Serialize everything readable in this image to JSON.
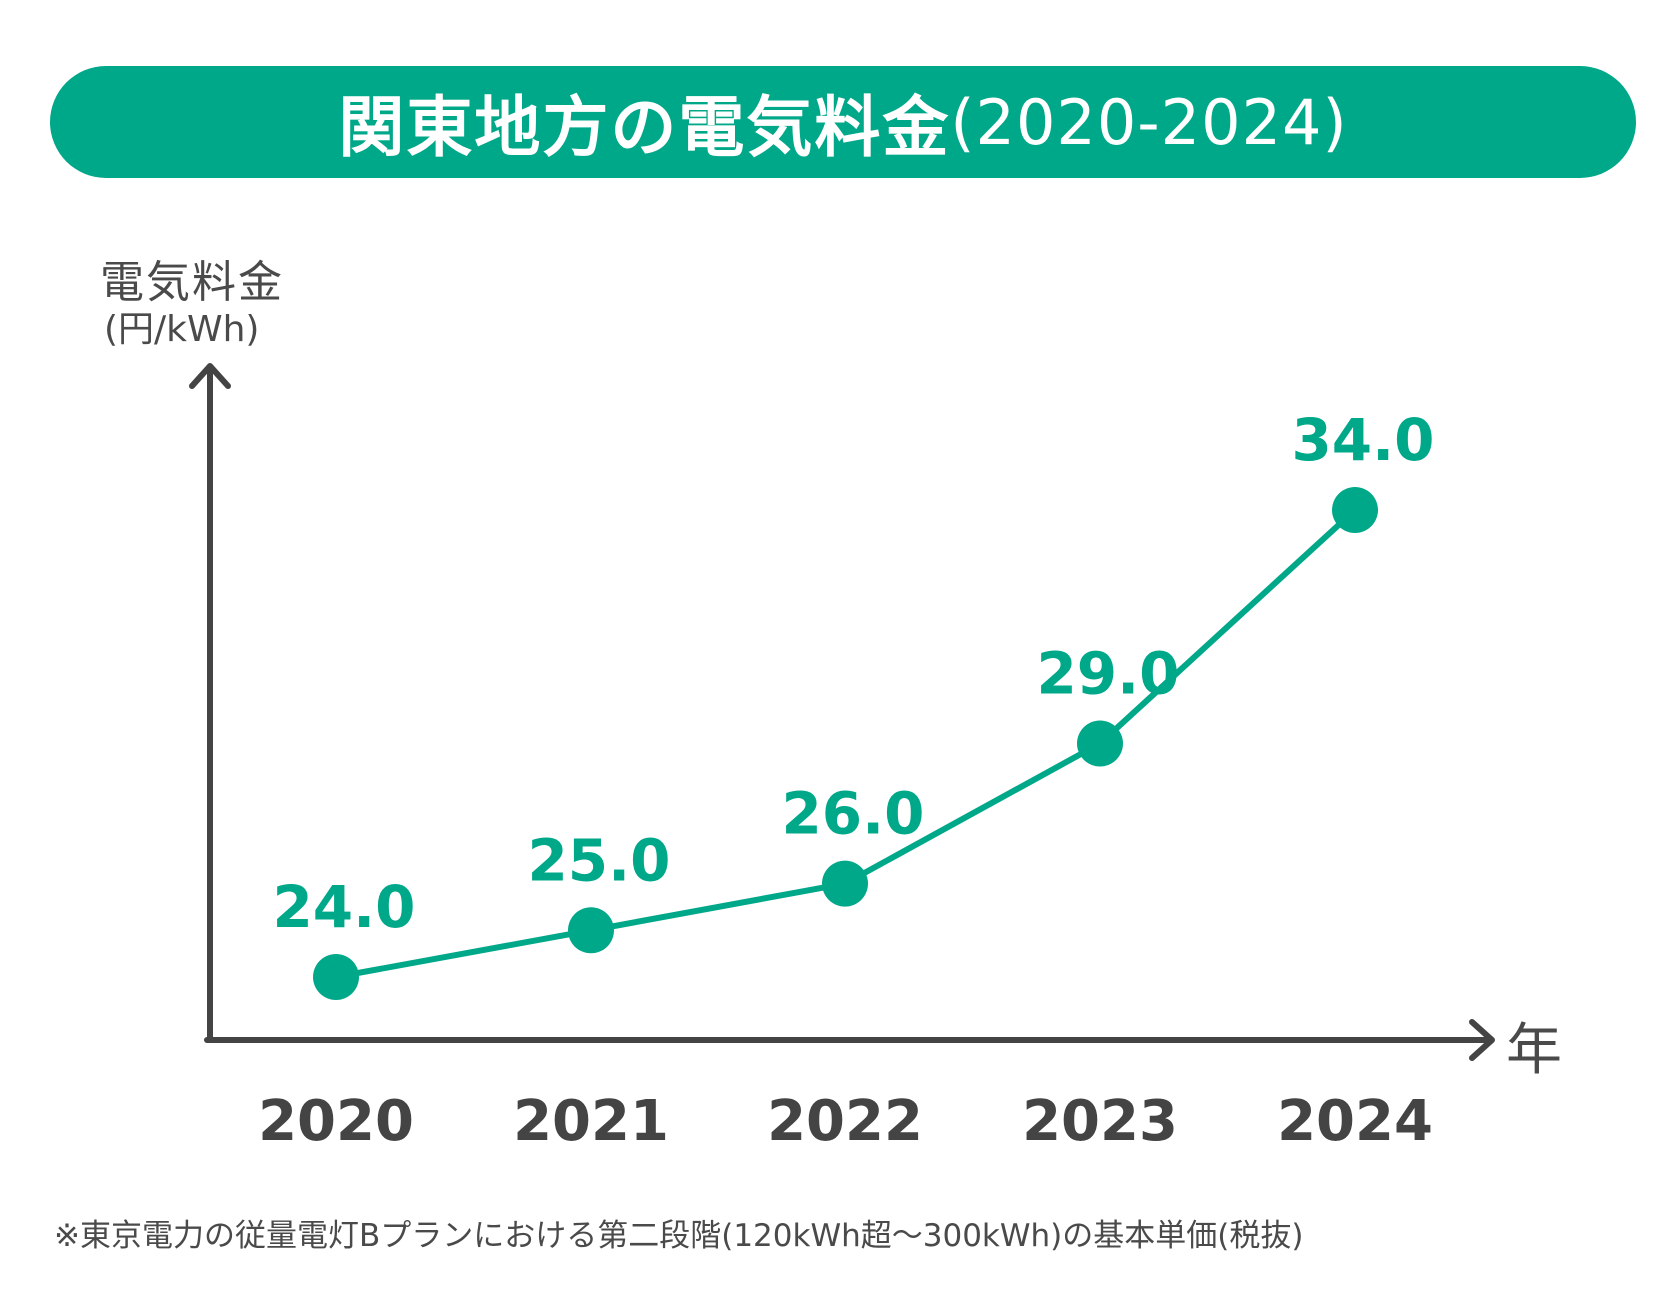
{
  "header": {
    "title": "関東地方の電気料金",
    "title_years": "(2020-2024)"
  },
  "axis": {
    "y_title": "電気料金",
    "y_unit": "(円/kWh)",
    "x_title": "年"
  },
  "footnote": "※東京電力の従量電灯Bプランにおける第二段階(120kWh超〜300kWh)の基本単価(税抜)",
  "colors": {
    "accent": "#00a88a",
    "axis": "#444444",
    "text": "#4a4a4a"
  },
  "chart_data": {
    "type": "line",
    "title": "関東地方の電気料金(2020-2024)",
    "xlabel": "年",
    "ylabel": "電気料金(円/kWh)",
    "categories": [
      "2020",
      "2021",
      "2022",
      "2023",
      "2024"
    ],
    "values": [
      24.0,
      25.0,
      26.0,
      29.0,
      34.0
    ],
    "value_labels": [
      "24.0",
      "25.0",
      "26.0",
      "29.0",
      "34.0"
    ],
    "grid": false
  }
}
